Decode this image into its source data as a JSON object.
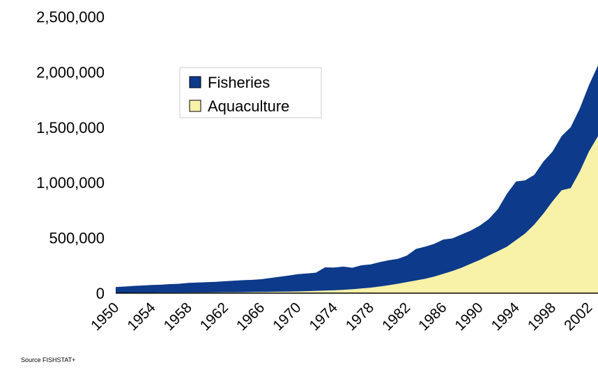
{
  "chart_data": {
    "type": "area",
    "stacked": true,
    "title": "",
    "xlabel": "",
    "ylabel": "",
    "xlim": [
      1950,
      2003
    ],
    "ylim": [
      0,
      2500000
    ],
    "yticks": [
      0,
      500000,
      1000000,
      1500000,
      2000000,
      2500000
    ],
    "ytick_labels": [
      "0",
      "500,000",
      "1,000,000",
      "1,500,000",
      "2,000,000",
      "2,500,000"
    ],
    "xtick_labels": [
      "1950",
      "1954",
      "1958",
      "1962",
      "1966",
      "1970",
      "1974",
      "1978",
      "1982",
      "1986",
      "1990",
      "1994",
      "1998",
      "2002"
    ],
    "grid": false,
    "legend": "upper-left-inside",
    "x": [
      1950,
      1951,
      1952,
      1953,
      1954,
      1955,
      1956,
      1957,
      1958,
      1959,
      1960,
      1961,
      1962,
      1963,
      1964,
      1965,
      1966,
      1967,
      1968,
      1969,
      1970,
      1971,
      1972,
      1973,
      1974,
      1975,
      1976,
      1977,
      1978,
      1979,
      1980,
      1981,
      1982,
      1983,
      1984,
      1985,
      1986,
      1987,
      1988,
      1989,
      1990,
      1991,
      1992,
      1993,
      1994,
      1995,
      1996,
      1997,
      1998,
      1999,
      2000,
      2001,
      2002,
      2003
    ],
    "series": [
      {
        "name": "Aquaculture",
        "color": "#f8f2a8",
        "values": [
          3000,
          3000,
          3500,
          4000,
          4000,
          4500,
          5000,
          5000,
          5500,
          6000,
          6500,
          7000,
          7500,
          8000,
          9000,
          10000,
          11000,
          12000,
          13000,
          14000,
          16000,
          18000,
          20000,
          23000,
          26000,
          30000,
          35000,
          42000,
          50000,
          60000,
          72000,
          85000,
          100000,
          115000,
          130000,
          150000,
          175000,
          200000,
          230000,
          265000,
          300000,
          340000,
          380000,
          420000,
          480000,
          540000,
          620000,
          720000,
          830000,
          930000,
          950000,
          1100000,
          1280000,
          1420000
        ]
      },
      {
        "name": "Fisheries",
        "color": "#0d3a8a",
        "values": [
          52000,
          57000,
          62000,
          65000,
          70000,
          72000,
          77000,
          80000,
          88000,
          90000,
          93000,
          95000,
          100000,
          105000,
          108000,
          110000,
          115000,
          125000,
          135000,
          145000,
          155000,
          160000,
          165000,
          210000,
          205000,
          210000,
          195000,
          210000,
          210000,
          220000,
          225000,
          225000,
          240000,
          285000,
          290000,
          295000,
          310000,
          295000,
          300000,
          300000,
          310000,
          330000,
          380000,
          480000,
          530000,
          480000,
          450000,
          470000,
          450000,
          490000,
          550000,
          570000,
          600000,
          640000
        ]
      }
    ]
  },
  "source_text": "Source FISHSTAT+"
}
